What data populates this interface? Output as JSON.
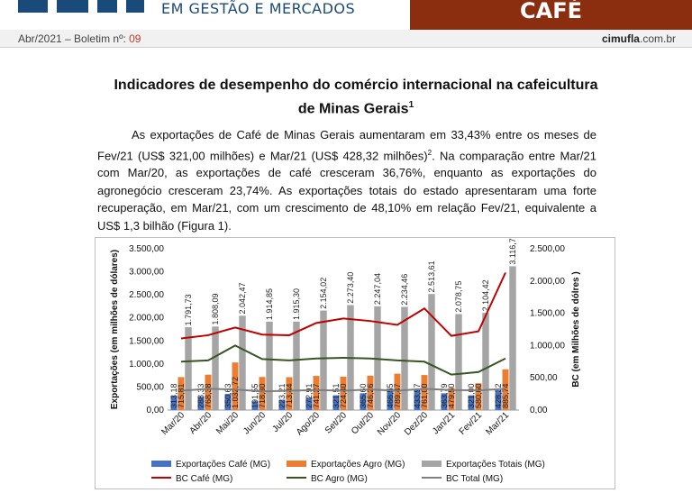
{
  "header": {
    "brand_subtitle": "EM GESTÃO E MERCADOS",
    "banner_label": "CAFÉ",
    "bulletin_prefix": "Abr/2021 – Boletim nº: ",
    "bulletin_number": "09",
    "site_bold": "cimufla",
    "site_rest": ".com.br"
  },
  "document": {
    "title_line1": "Indicadores de desempenho do comércio internacional na cafeicultura",
    "title_line2": "de Minas Gerais",
    "title_sup": "1",
    "paragraph_part1": "As exportações de Café de Minas Gerais aumentaram em 33,43% entre os meses de Fev/21 (US$ 321,00 milhões) e Mar/21 (US$ 428,32 milhões)",
    "paragraph_sup": "2",
    "paragraph_part2": ". Na comparação entre Mar/21 com Mar/20, as exportações de café cresceram 36,76%, enquanto as exportações do agronegócio cresceram 23,74%. As exportações totais do estado apresentaram uma forte recuperação, em Mar/21, com um crescimento de 48,10% em relação Fev/21, equivalente a US$ 1,3 bilhão (Figura 1)."
  },
  "chart_data": {
    "type": "bar",
    "categories": [
      "Mar/20",
      "Abr/20",
      "Mai/20",
      "Jun/20",
      "Jul/20",
      "Ago/20",
      "Set/20",
      "Out/20",
      "Nov/20",
      "Dez/20",
      "Jan/21",
      "Fev/21",
      "Mar/21"
    ],
    "ylabel": "Exportações (em milhões de dólares)",
    "y2label": "BC  (em Milhões de dólres )",
    "ylim": [
      0,
      3500
    ],
    "y2lim": [
      0,
      2500
    ],
    "yticks": [
      "0,00",
      "500,00",
      "1.000,00",
      "1.500,00",
      "2.000,00",
      "2.500,00",
      "3.000,00",
      "3.500,00"
    ],
    "y2ticks": [
      "0,00",
      "500,00",
      "1.000,00",
      "1.500,00",
      "2.000,00",
      "2.500,00"
    ],
    "series": [
      {
        "name": "Exportações Café (MG)",
        "color": "#4472c4",
        "values": [
          313.18,
          288.33,
          350.63,
          191.55,
          223.21,
          272.91,
          321.51,
          365.6,
          466.55,
          433.97,
          363.79,
          321.0,
          428.32
        ],
        "labels": [
          "313,18",
          "288,33",
          "350,63",
          "191,55",
          "223,21",
          "272,91",
          "321,51",
          "365,60",
          "466,55",
          "433,97",
          "363,79",
          "321,00",
          "428,32"
        ]
      },
      {
        "name": "Exportações Agro (MG)",
        "color": "#ed7d31",
        "values": [
          715.81,
          768.38,
          1032.72,
          718.3,
          713.44,
          741.27,
          724.4,
          746.26,
          789.47,
          761.0,
          479.5,
          580.6,
          885.74
        ],
        "labels": [
          "715,81",
          "768,38",
          "1.032,72",
          "718,30",
          "713,44",
          "741,27",
          "724,40",
          "746,26",
          "789,47",
          "761,00",
          "479,50",
          "580,60",
          "885,74"
        ]
      },
      {
        "name": "Exportações Totais (MG)",
        "color": "#a5a5a5",
        "values": [
          1791.73,
          1808.09,
          2042.47,
          1914.85,
          1915.3,
          2154.02,
          2273.4,
          2247.04,
          2234.46,
          2513.61,
          2078.75,
          2104.42,
          3116.7
        ],
        "labels": [
          "1.791,73",
          "1.808,09",
          "2.042,47",
          "1.914,85",
          "1.915,30",
          "2.154,02",
          "2.273,40",
          "2.247,04",
          "2.234,46",
          "2.513,61",
          "2.078,75",
          "2.104,42",
          "3.116,70"
        ]
      }
    ],
    "lines": [
      {
        "name": "BC Café (MG)",
        "color": "#c00000",
        "values": [
          1110,
          1160,
          1280,
          1170,
          1160,
          1350,
          1420,
          1380,
          1320,
          1575,
          1150,
          1220,
          2130
        ]
      },
      {
        "name": "BC Agro (MG)",
        "color": "#375623",
        "values": [
          750,
          770,
          1000,
          790,
          770,
          800,
          810,
          800,
          770,
          750,
          550,
          590,
          800
        ]
      },
      {
        "name": "BC Total (MG)",
        "color": "#7f7f7f",
        "values": [
          300,
          330,
          320,
          290,
          300,
          310,
          300,
          320,
          300,
          330,
          310,
          305,
          330
        ]
      }
    ],
    "legend_placement": "bottom"
  }
}
